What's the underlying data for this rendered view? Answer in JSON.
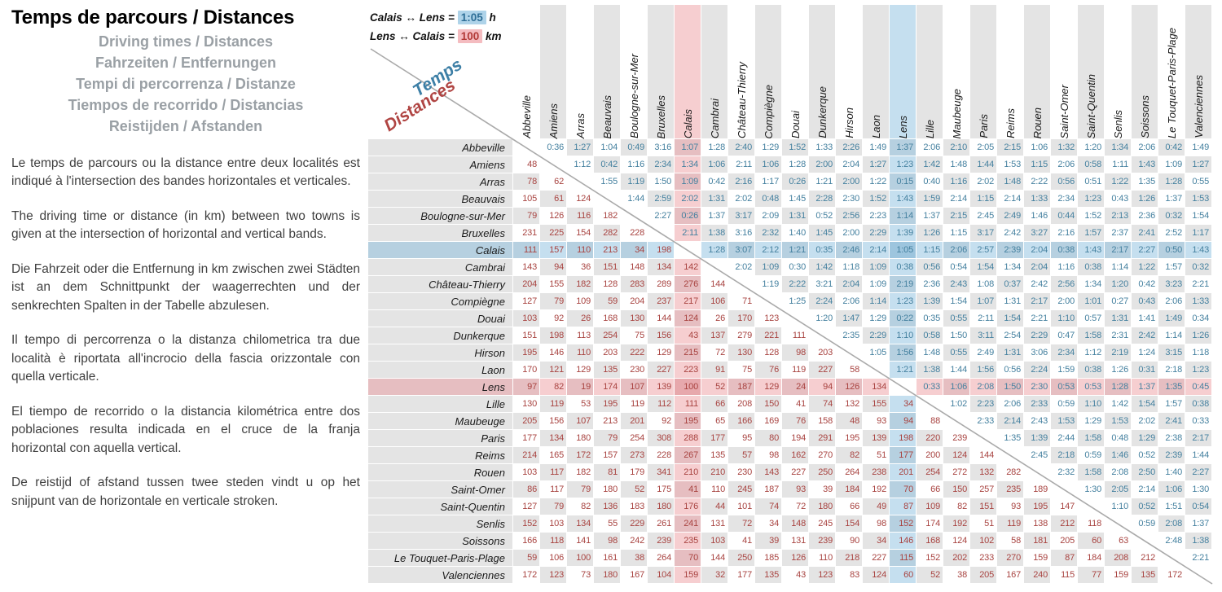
{
  "left_panel": {
    "title": "Temps de parcours / Distances",
    "subtitles": [
      "Driving times / Distances",
      "Fahrzeiten / Entfernungen",
      "Tempi di percorrenza / Distanze",
      "Tiempos de recorrido / Distancias",
      "Reistijden / Afstanden"
    ],
    "paragraphs": [
      "Le temps de parcours ou la distance entre deux localités est indiqué à l'intersection des bandes horizontales et verticales.",
      "The driving time or distance (in km) between two towns is given at the intersection of horizontal and vertical bands.",
      "Die Fahrzeit oder die Entfernung in km zwischen zwei Städten ist an dem Schnittpunkt der waagerrechten und der senkrechten Spalten in der Tabelle abzulesen.",
      "Il tempo di percorrenza o la distanza chilometrica tra due località è riportata all'incrocio della fascia orizzontale con quella verticale.",
      "El tiempo de recorrido o la distancia kilométrica entre dos poblaciones resulta indicada en el cruce de la franja horizontal con aquella vertical.",
      "De reistijd of afstand tussen twee steden vindt u op het snijpunt van de horizontale en verticale stroken."
    ]
  },
  "legend": {
    "time_example": {
      "pre": "Calais ↔ Lens =",
      "value": "1:05",
      "unit": "h"
    },
    "distance_example": {
      "pre": "Lens ↔ Calais =",
      "value": "100",
      "unit": "km"
    }
  },
  "table": {
    "time_label": "Temps",
    "distance_label": "Distances",
    "highlight_time_pair": [
      "Calais",
      "Lens"
    ],
    "highlight_distance_pair": [
      "Lens",
      "Calais"
    ]
  },
  "colors": {
    "time_text": "#44809f",
    "distance_text": "#a84340",
    "stripe_gray": "#e4e4e4",
    "band_blue_tint": "#7eb7db",
    "band_pink_tint": "#e98a90",
    "diagonal_line": "#aaaaaa"
  },
  "chart_data": {
    "type": "table",
    "title": "Temps de parcours / Distances",
    "note": "Upper-right triangle = driving times (h:mm), shown blue. Lower-left triangle = distances in km, shown red. Empty diagonal.",
    "cities": [
      "Abbeville",
      "Amiens",
      "Arras",
      "Beauvais",
      "Boulogne-sur-Mer",
      "Bruxelles",
      "Calais",
      "Cambrai",
      "Château-Thierry",
      "Compiègne",
      "Douai",
      "Dunkerque",
      "Hirson",
      "Laon",
      "Lens",
      "Lille",
      "Maubeuge",
      "Paris",
      "Reims",
      "Rouen",
      "Saint-Omer",
      "Saint-Quentin",
      "Senlis",
      "Soissons",
      "Le Touquet-Paris-Plage",
      "Valenciennes"
    ],
    "matrix": [
      [
        "",
        "0:36",
        "1:27",
        "1:04",
        "0:49",
        "3:16",
        "1:07",
        "1:28",
        "2:40",
        "1:29",
        "1:52",
        "1:33",
        "2:26",
        "1:49",
        "1:37",
        "2:06",
        "2:10",
        "2:05",
        "2:15",
        "1:06",
        "1:32",
        "1:20",
        "1:34",
        "2:06",
        "0:42",
        "1:49"
      ],
      [
        "48",
        "",
        "1:12",
        "0:42",
        "1:16",
        "2:34",
        "1:34",
        "1:06",
        "2:11",
        "1:06",
        "1:28",
        "2:00",
        "2:04",
        "1:27",
        "1:23",
        "1:42",
        "1:48",
        "1:44",
        "1:53",
        "1:15",
        "2:06",
        "0:58",
        "1:11",
        "1:43",
        "1:09",
        "1:27"
      ],
      [
        "78",
        "62",
        "",
        "1:55",
        "1:19",
        "1:50",
        "1:09",
        "0:42",
        "2:16",
        "1:17",
        "0:26",
        "1:21",
        "2:00",
        "1:22",
        "0:15",
        "0:40",
        "1:16",
        "2:02",
        "1:48",
        "2:22",
        "0:56",
        "0:51",
        "1:22",
        "1:35",
        "1:28",
        "0:55"
      ],
      [
        "105",
        "61",
        "124",
        "",
        "1:44",
        "2:59",
        "2:02",
        "1:31",
        "2:02",
        "0:48",
        "1:45",
        "2:28",
        "2:30",
        "1:52",
        "1:43",
        "1:59",
        "2:14",
        "1:15",
        "2:14",
        "1:33",
        "2:34",
        "1:23",
        "0:43",
        "1:26",
        "1:37",
        "1:53"
      ],
      [
        "79",
        "126",
        "116",
        "182",
        "",
        "2:27",
        "0:26",
        "1:37",
        "3:17",
        "2:09",
        "1:31",
        "0:52",
        "2:56",
        "2:23",
        "1:14",
        "1:37",
        "2:15",
        "2:45",
        "2:49",
        "1:46",
        "0:44",
        "1:52",
        "2:13",
        "2:36",
        "0:32",
        "1:54"
      ],
      [
        "231",
        "225",
        "154",
        "282",
        "228",
        "",
        "2:11",
        "1:38",
        "3:16",
        "2:32",
        "1:40",
        "1:45",
        "2:00",
        "2:29",
        "1:39",
        "1:26",
        "1:15",
        "3:17",
        "2:42",
        "3:27",
        "2:16",
        "1:57",
        "2:37",
        "2:41",
        "2:52",
        "1:17"
      ],
      [
        "111",
        "157",
        "110",
        "213",
        "34",
        "198",
        "",
        "1:28",
        "3:07",
        "2:12",
        "1:21",
        "0:35",
        "2:46",
        "2:14",
        "1:05",
        "1:15",
        "2:06",
        "2:57",
        "2:39",
        "2:04",
        "0:38",
        "1:43",
        "2:17",
        "2:27",
        "0:50",
        "1:43"
      ],
      [
        "143",
        "94",
        "36",
        "151",
        "148",
        "134",
        "142",
        "",
        "2:02",
        "1:09",
        "0:30",
        "1:42",
        "1:18",
        "1:09",
        "0:38",
        "0:56",
        "0:54",
        "1:54",
        "1:34",
        "2:04",
        "1:16",
        "0:38",
        "1:14",
        "1:22",
        "1:57",
        "0:32"
      ],
      [
        "204",
        "155",
        "182",
        "128",
        "283",
        "289",
        "276",
        "144",
        "",
        "1:19",
        "2:22",
        "3:21",
        "2:04",
        "1:09",
        "2:19",
        "2:36",
        "2:43",
        "1:08",
        "0:37",
        "2:42",
        "2:56",
        "1:34",
        "1:20",
        "0:42",
        "3:23",
        "2:21"
      ],
      [
        "127",
        "79",
        "109",
        "59",
        "204",
        "237",
        "217",
        "106",
        "71",
        "",
        "1:25",
        "2:24",
        "2:06",
        "1:14",
        "1:23",
        "1:39",
        "1:54",
        "1:07",
        "1:31",
        "2:17",
        "2:00",
        "1:01",
        "0:27",
        "0:43",
        "2:06",
        "1:33"
      ],
      [
        "103",
        "92",
        "26",
        "168",
        "130",
        "144",
        "124",
        "26",
        "170",
        "123",
        "",
        "1:20",
        "1:47",
        "1:29",
        "0:22",
        "0:35",
        "0:55",
        "2:11",
        "1:54",
        "2:21",
        "1:10",
        "0:57",
        "1:31",
        "1:41",
        "1:49",
        "0:34"
      ],
      [
        "151",
        "198",
        "113",
        "254",
        "75",
        "156",
        "43",
        "137",
        "279",
        "221",
        "111",
        "",
        "2:35",
        "2:29",
        "1:10",
        "0:58",
        "1:50",
        "3:11",
        "2:54",
        "2:29",
        "0:47",
        "1:58",
        "2:31",
        "2:42",
        "1:14",
        "1:26"
      ],
      [
        "195",
        "146",
        "110",
        "203",
        "222",
        "129",
        "215",
        "72",
        "130",
        "128",
        "98",
        "203",
        "",
        "1:05",
        "1:56",
        "1:48",
        "0:55",
        "2:49",
        "1:31",
        "3:06",
        "2:34",
        "1:12",
        "2:19",
        "1:24",
        "3:15",
        "1:18"
      ],
      [
        "170",
        "121",
        "129",
        "135",
        "230",
        "227",
        "223",
        "91",
        "75",
        "76",
        "119",
        "227",
        "58",
        "",
        "1:21",
        "1:38",
        "1:44",
        "1:56",
        "0:56",
        "2:24",
        "1:59",
        "0:38",
        "1:26",
        "0:31",
        "2:18",
        "1:23"
      ],
      [
        "97",
        "82",
        "19",
        "174",
        "107",
        "139",
        "100",
        "52",
        "187",
        "129",
        "24",
        "94",
        "126",
        "134",
        "",
        "0:33",
        "1:06",
        "2:08",
        "1:50",
        "2:30",
        "0:53",
        "0:53",
        "1:28",
        "1:37",
        "1:35",
        "0:45"
      ],
      [
        "130",
        "119",
        "53",
        "195",
        "119",
        "112",
        "111",
        "66",
        "208",
        "150",
        "41",
        "74",
        "132",
        "155",
        "34",
        "",
        "1:02",
        "2:23",
        "2:06",
        "2:33",
        "0:59",
        "1:10",
        "1:42",
        "1:54",
        "1:57",
        "0:38"
      ],
      [
        "205",
        "156",
        "107",
        "213",
        "201",
        "92",
        "195",
        "65",
        "166",
        "169",
        "76",
        "158",
        "48",
        "93",
        "94",
        "88",
        "",
        "2:33",
        "2:14",
        "2:43",
        "1:53",
        "1:29",
        "1:53",
        "2:02",
        "2:41",
        "0:33"
      ],
      [
        "177",
        "134",
        "180",
        "79",
        "254",
        "308",
        "288",
        "177",
        "95",
        "80",
        "194",
        "291",
        "195",
        "139",
        "198",
        "220",
        "239",
        "",
        "1:35",
        "1:39",
        "2:44",
        "1:58",
        "0:48",
        "1:29",
        "2:38",
        "2:17"
      ],
      [
        "214",
        "165",
        "172",
        "157",
        "273",
        "228",
        "267",
        "135",
        "57",
        "98",
        "162",
        "270",
        "82",
        "51",
        "177",
        "200",
        "124",
        "144",
        "",
        "2:45",
        "2:18",
        "0:59",
        "1:46",
        "0:52",
        "2:39",
        "1:44"
      ],
      [
        "103",
        "117",
        "182",
        "81",
        "179",
        "341",
        "210",
        "210",
        "230",
        "143",
        "227",
        "250",
        "264",
        "238",
        "201",
        "254",
        "272",
        "132",
        "282",
        "",
        "2:32",
        "1:58",
        "2:08",
        "2:50",
        "1:40",
        "2:27"
      ],
      [
        "86",
        "117",
        "79",
        "180",
        "52",
        "175",
        "41",
        "110",
        "245",
        "187",
        "93",
        "39",
        "184",
        "192",
        "70",
        "66",
        "150",
        "257",
        "235",
        "189",
        "",
        "1:30",
        "2:05",
        "2:14",
        "1:06",
        "1:30"
      ],
      [
        "127",
        "79",
        "82",
        "136",
        "183",
        "180",
        "176",
        "44",
        "101",
        "74",
        "72",
        "180",
        "66",
        "49",
        "87",
        "109",
        "82",
        "151",
        "93",
        "195",
        "147",
        "",
        "1:10",
        "0:52",
        "1:51",
        "0:54"
      ],
      [
        "152",
        "103",
        "134",
        "55",
        "229",
        "261",
        "241",
        "131",
        "72",
        "34",
        "148",
        "245",
        "154",
        "98",
        "152",
        "174",
        "192",
        "51",
        "119",
        "138",
        "212",
        "118",
        "",
        "0:59",
        "2:08",
        "1:37"
      ],
      [
        "166",
        "118",
        "141",
        "98",
        "242",
        "239",
        "235",
        "103",
        "41",
        "39",
        "131",
        "239",
        "90",
        "34",
        "146",
        "168",
        "124",
        "102",
        "58",
        "181",
        "205",
        "60",
        "63",
        "",
        "2:48",
        "1:38"
      ],
      [
        "59",
        "106",
        "100",
        "161",
        "38",
        "264",
        "70",
        "144",
        "250",
        "185",
        "126",
        "110",
        "218",
        "227",
        "115",
        "152",
        "202",
        "233",
        "270",
        "159",
        "87",
        "184",
        "208",
        "212",
        "",
        "2:21"
      ],
      [
        "172",
        "123",
        "73",
        "180",
        "167",
        "104",
        "159",
        "32",
        "177",
        "135",
        "43",
        "123",
        "83",
        "124",
        "60",
        "52",
        "38",
        "205",
        "167",
        "240",
        "115",
        "77",
        "159",
        "135",
        "172",
        ""
      ]
    ]
  }
}
